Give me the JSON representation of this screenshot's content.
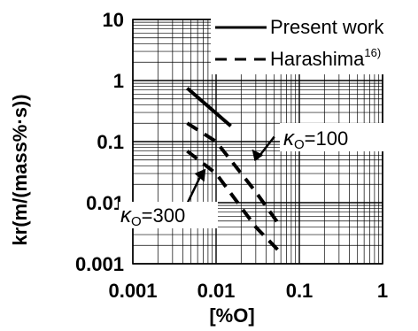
{
  "chart_data": {
    "type": "line",
    "xlabel": "[%O]",
    "ylabel": "kr(m/(mass%·s))",
    "x_scale": "log",
    "y_scale": "log",
    "xlim": [
      0.001,
      1
    ],
    "ylim": [
      0.001,
      10
    ],
    "grid": true,
    "legend_position": "top-right",
    "x_ticks": [
      "0.001",
      "0.01",
      "0.1",
      "1"
    ],
    "y_ticks": [
      "10",
      "1",
      "0.1",
      "0.01",
      "0.001"
    ],
    "legend": [
      {
        "label": "Present work",
        "style": "solid"
      },
      {
        "label": "Harashima",
        "superscript": "16)",
        "style": "dashed"
      }
    ],
    "series": [
      {
        "name": "Present work",
        "style": "solid",
        "x": [
          0.0045,
          0.015
        ],
        "y": [
          0.75,
          0.18
        ]
      },
      {
        "name": "Harashima",
        "style": "dashed",
        "label": "κ_O=100",
        "x": [
          0.0045,
          0.01,
          0.03,
          0.06
        ],
        "y": [
          0.2,
          0.1,
          0.015,
          0.004
        ]
      },
      {
        "name": "Harashima",
        "style": "dashed",
        "label": "κ_O=300",
        "x": [
          0.0045,
          0.01,
          0.03,
          0.06
        ],
        "y": [
          0.07,
          0.03,
          0.004,
          0.0015
        ]
      }
    ],
    "annotations": [
      {
        "greek": "κ",
        "sub": "O",
        "value": "=100"
      },
      {
        "greek": "κ",
        "sub": "O",
        "value": "=300"
      }
    ]
  }
}
